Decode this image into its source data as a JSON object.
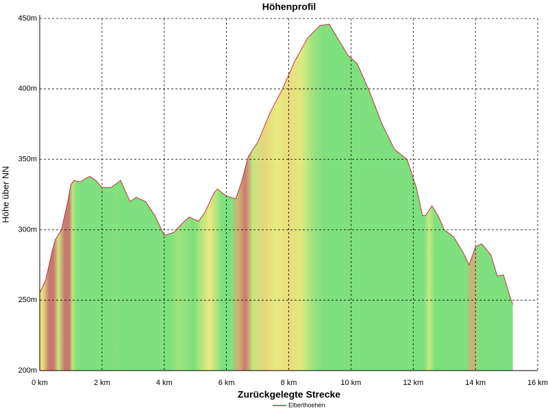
{
  "chart_data": {
    "type": "area",
    "title": "Höhenprofil",
    "xlabel": "Zurückgelegte Strecke",
    "ylabel": "Höhe über NN",
    "grid": true,
    "legend": "bottom",
    "xlim": [
      0,
      16
    ],
    "ylim": [
      200,
      450
    ],
    "xticks": [
      {
        "value": 0,
        "label": "0 km"
      },
      {
        "value": 2,
        "label": "2 km"
      },
      {
        "value": 4,
        "label": "4 km"
      },
      {
        "value": 6,
        "label": "6 km"
      },
      {
        "value": 8,
        "label": "8 km"
      },
      {
        "value": 10,
        "label": "10 km"
      },
      {
        "value": 12,
        "label": "12 km"
      },
      {
        "value": 14,
        "label": "14 km"
      },
      {
        "value": 16,
        "label": "16 km"
      }
    ],
    "yticks": [
      {
        "value": 200,
        "label": "200m"
      },
      {
        "value": 250,
        "label": "250m"
      },
      {
        "value": 300,
        "label": "300m"
      },
      {
        "value": 350,
        "label": "350m"
      },
      {
        "value": 400,
        "label": "400m"
      },
      {
        "value": 450,
        "label": "450m"
      }
    ],
    "x": [
      0,
      0.2,
      0.4,
      0.5,
      0.7,
      0.9,
      1.0,
      1.1,
      1.3,
      1.6,
      1.8,
      2.0,
      2.3,
      2.6,
      2.8,
      2.9,
      3.1,
      3.4,
      3.7,
      4.0,
      4.3,
      4.6,
      4.8,
      5.1,
      5.3,
      5.6,
      5.7,
      6.0,
      6.3,
      6.5,
      6.7,
      7.0,
      7.4,
      7.8,
      8.2,
      8.6,
      9.0,
      9.3,
      9.6,
      9.9,
      10.2,
      10.6,
      11.0,
      11.4,
      11.8,
      12.1,
      12.3,
      12.4,
      12.6,
      12.8,
      13.0,
      13.3,
      13.6,
      13.8,
      14.0,
      14.2,
      14.5,
      14.7,
      14.9,
      15.1,
      15.2
    ],
    "series": [
      {
        "name": "Elberthoehen",
        "color": "#c0303a",
        "values": [
          255,
          265,
          285,
          293,
          300,
          320,
          332,
          335,
          334,
          338,
          335,
          330,
          330,
          335,
          325,
          320,
          323,
          320,
          310,
          296,
          298,
          305,
          309,
          306,
          312,
          326,
          329,
          324,
          322,
          335,
          352,
          362,
          383,
          400,
          420,
          436,
          445,
          446,
          435,
          424,
          418,
          398,
          375,
          357,
          350,
          330,
          310,
          310,
          317,
          310,
          300,
          295,
          284,
          275,
          288,
          290,
          282,
          267,
          268,
          253,
          247
        ]
      }
    ]
  }
}
